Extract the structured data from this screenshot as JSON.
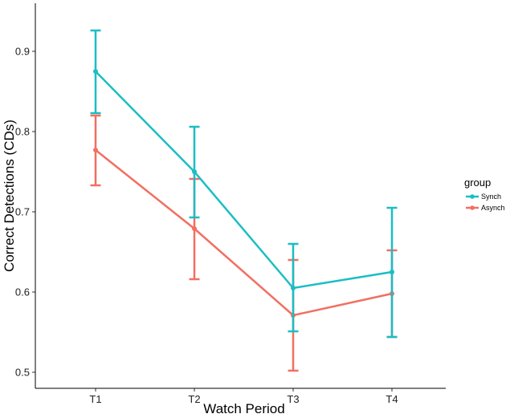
{
  "chart_data": {
    "type": "line",
    "categories": [
      "T1",
      "T2",
      "T3",
      "T4"
    ],
    "xlabel": "Watch Period",
    "ylabel": "Correct Detections (CDs)",
    "ylim": [
      0.48,
      0.96
    ],
    "yticks": [
      "0.5",
      "0.6",
      "0.7",
      "0.8",
      "0.9"
    ],
    "grid": false,
    "legend": {
      "title": "group",
      "position": "right"
    },
    "series": [
      {
        "name": "Synch",
        "color": "#1ABEC4",
        "values": [
          0.875,
          0.75,
          0.605,
          0.625
        ],
        "error_low": [
          0.823,
          0.693,
          0.551,
          0.544
        ],
        "error_high": [
          0.926,
          0.806,
          0.66,
          0.705
        ]
      },
      {
        "name": "Asynch",
        "color": "#F26F61",
        "values": [
          0.777,
          0.679,
          0.571,
          0.598
        ],
        "error_low": [
          0.733,
          0.616,
          0.502,
          0.544
        ],
        "error_high": [
          0.82,
          0.741,
          0.64,
          0.652
        ]
      }
    ]
  }
}
